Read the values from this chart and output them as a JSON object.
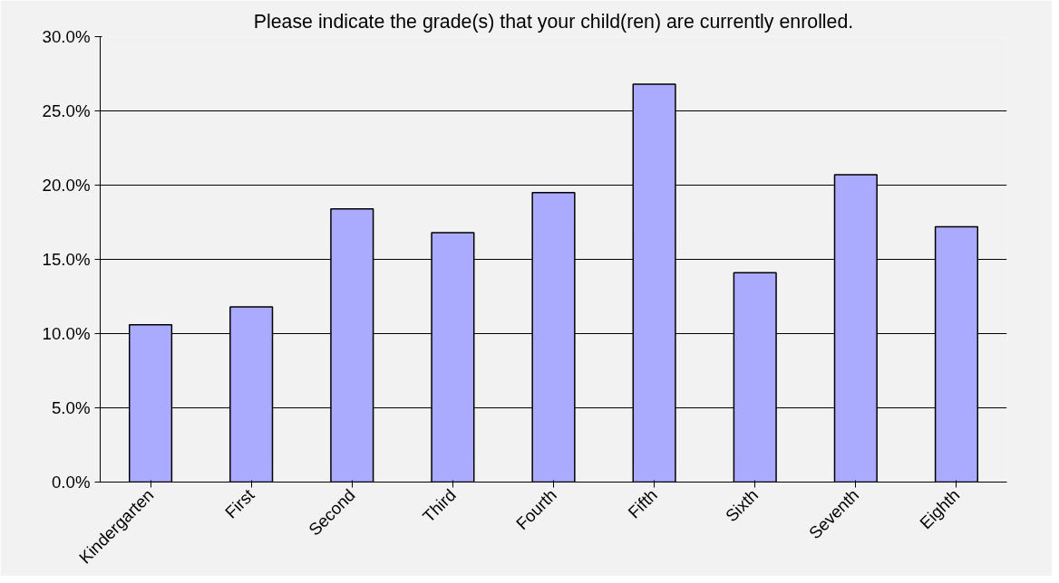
{
  "chart_data": {
    "type": "bar",
    "title": "Please indicate the grade(s) that your child(ren) are currently enrolled.",
    "categories": [
      "Kindergarten",
      "First",
      "Second",
      "Third",
      "Fourth",
      "Fifth",
      "Sixth",
      "Seventh",
      "Eighth"
    ],
    "values": [
      10.6,
      11.8,
      18.4,
      16.8,
      19.5,
      26.8,
      14.1,
      20.7,
      17.2
    ],
    "color": "#aaaaff",
    "ylim": [
      0,
      30
    ],
    "yticks": [
      {
        "value": 0,
        "label": "0.0%"
      },
      {
        "value": 5,
        "label": "5.0%"
      },
      {
        "value": 10,
        "label": "10.0%"
      },
      {
        "value": 15,
        "label": "15.0%"
      },
      {
        "value": 20,
        "label": "20.0%"
      },
      {
        "value": 25,
        "label": "25.0%"
      },
      {
        "value": 30,
        "label": "30.0%"
      }
    ],
    "grid": "y"
  }
}
